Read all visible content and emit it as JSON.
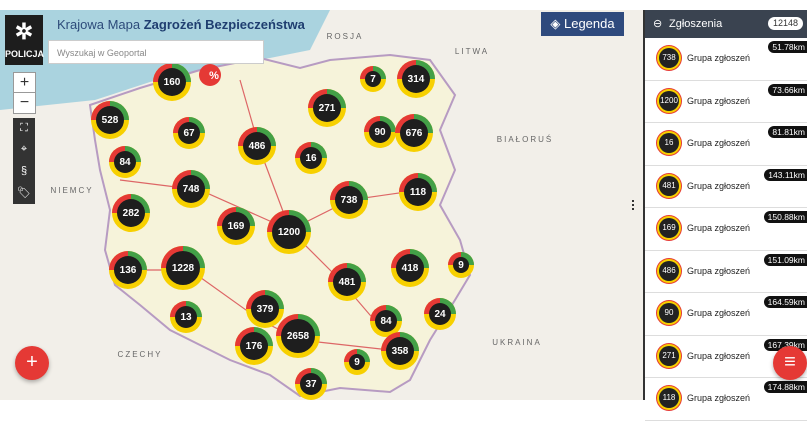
{
  "header": {
    "logo_text": "POLICJA",
    "title_prefix": "Krajowa Mapa",
    "title_emphasis": "Zagrożeń Bezpieczeństwa"
  },
  "search": {
    "placeholder": "Wyszukaj w Geoportal"
  },
  "legend_button": {
    "label": "Legenda"
  },
  "map": {
    "controls": {
      "zoom_in": "+",
      "zoom_out": "−",
      "law": "§"
    },
    "marker_label": "%",
    "country_labels": [
      "ROSJA",
      "LITWA",
      "BIAŁORUŚ",
      "NIEMCY",
      "CZECHY",
      "UKRAINA"
    ],
    "clusters": [
      160,
      7,
      314,
      528,
      67,
      271,
      90,
      676,
      84,
      486,
      16,
      748,
      738,
      118,
      282,
      169,
      1200,
      9,
      136,
      1228,
      481,
      418,
      13,
      379,
      24,
      84,
      2658,
      176,
      9,
      358,
      37
    ]
  },
  "panel": {
    "title": "Zgłoszenia",
    "count": 12148,
    "items": [
      {
        "count": 738,
        "label": "Grupa zgłoszeń",
        "distance": "51.78km"
      },
      {
        "count": 1200,
        "label": "Grupa zgłoszeń",
        "distance": "73.66km"
      },
      {
        "count": 16,
        "label": "Grupa zgłoszeń",
        "distance": "81.81km"
      },
      {
        "count": 481,
        "label": "Grupa zgłoszeń",
        "distance": "143.11km"
      },
      {
        "count": 169,
        "label": "Grupa zgłoszeń",
        "distance": "150.88km"
      },
      {
        "count": 486,
        "label": "Grupa zgłoszeń",
        "distance": "151.09km"
      },
      {
        "count": 90,
        "label": "Grupa zgłoszeń",
        "distance": "164.59km"
      },
      {
        "count": 271,
        "label": "Grupa zgłoszeń",
        "distance": "167.39km"
      },
      {
        "count": 118,
        "label": "Grupa zgłoszeń",
        "distance": "174.88km"
      }
    ]
  }
}
